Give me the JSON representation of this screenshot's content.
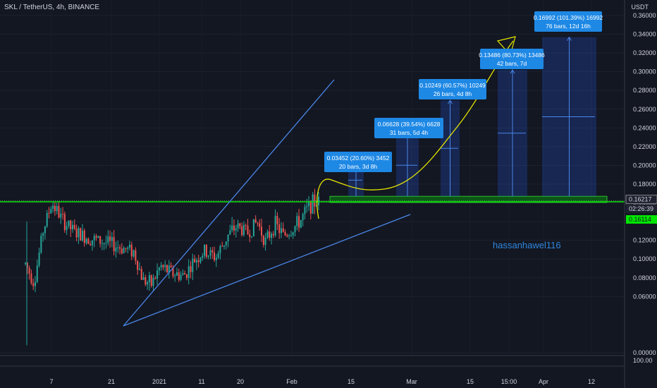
{
  "header": {
    "title": "SKL / TetherUS, 4h, BINANCE",
    "unit": "USDT"
  },
  "watermark": "hassanhawel116",
  "colors": {
    "background": "#131722",
    "up": "#26a69a",
    "down": "#ef5350",
    "trendline": "#4a86e8",
    "arrow": "#e6e600",
    "support": "#00e600",
    "target_box": "#1e4e8c",
    "label_bg": "#1e88e5"
  },
  "price_tags": {
    "last_price": "0.16217",
    "countdown": "02:26:39",
    "support_level": "0.16114"
  },
  "chart_data": {
    "type": "candlestick",
    "title": "SKL / TetherUS, 4h, BINANCE",
    "y_unit": "USDT",
    "ylim": [
      -0.004,
      0.363
    ],
    "y_ticks": [
      "0.36000",
      "0.34000",
      "0.32000",
      "0.30000",
      "0.28000",
      "0.26000",
      "0.24000",
      "0.22000",
      "0.20000",
      "0.18000",
      "0.16000",
      "0.14000",
      "0.12000",
      "0.10000",
      "0.08000",
      "0.06000",
      "0.00000"
    ],
    "volume_tick": "100.00",
    "x_ticks": [
      "7",
      "21",
      "2021",
      "11",
      "20",
      "Feb",
      "15",
      "Mar",
      "15",
      "15:00",
      "Apr",
      "12"
    ],
    "grid": true,
    "price_path": [
      [
        0.0,
        0.095
      ],
      [
        0.03,
        0.075
      ],
      [
        0.06,
        0.13
      ],
      [
        0.09,
        0.16
      ],
      [
        0.13,
        0.14
      ],
      [
        0.17,
        0.128
      ],
      [
        0.22,
        0.122
      ],
      [
        0.27,
        0.118
      ],
      [
        0.32,
        0.113
      ],
      [
        0.37,
        0.108
      ],
      [
        0.4,
        0.078
      ],
      [
        0.43,
        0.073
      ],
      [
        0.46,
        0.092
      ],
      [
        0.5,
        0.085
      ],
      [
        0.54,
        0.082
      ],
      [
        0.58,
        0.1
      ],
      [
        0.61,
        0.108
      ],
      [
        0.65,
        0.102
      ],
      [
        0.69,
        0.125
      ],
      [
        0.72,
        0.135
      ],
      [
        0.76,
        0.128
      ],
      [
        0.79,
        0.14
      ],
      [
        0.82,
        0.118
      ],
      [
        0.85,
        0.138
      ],
      [
        0.88,
        0.125
      ],
      [
        0.91,
        0.132
      ],
      [
        0.94,
        0.142
      ],
      [
        0.97,
        0.158
      ],
      [
        1.0,
        0.162
      ]
    ],
    "last_price": 0.16217,
    "support_level": 0.16114,
    "support_zone": [
      0.16114,
      0.167
    ],
    "measurements": [
      {
        "line1": "0.03452 (20.60%) 3452",
        "line2": "20 bars, 3d 8h",
        "base": 0.167,
        "target": 0.2015
      },
      {
        "line1": "0.06628 (39.54%) 6628",
        "line2": "31 bars, 5d 4h",
        "base": 0.167,
        "target": 0.2333
      },
      {
        "line1": "0.10249 (60.57%) 10249",
        "line2": "26 bars, 4d 8h",
        "base": 0.167,
        "target": 0.2695
      },
      {
        "line1": "0.13486 (80.73%) 13486",
        "line2": "42 bars, 7d",
        "base": 0.167,
        "target": 0.3019
      },
      {
        "line1": "0.16992 (101.39%) 16992",
        "line2": "76 bars, 12d 16h",
        "base": 0.167,
        "target": 0.3369
      }
    ]
  }
}
